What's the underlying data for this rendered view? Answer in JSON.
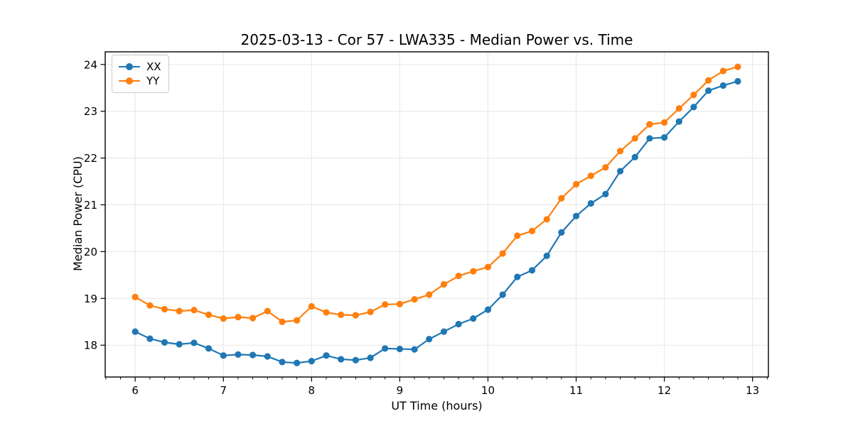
{
  "figure": {
    "background": "#ffffff"
  },
  "chart_data": {
    "type": "line",
    "title": "2025-03-13 - Cor 57 - LWA335 - Median Power vs. Time",
    "xlabel": "UT Time (hours)",
    "ylabel": "Median Power (CPU)",
    "xlim": [
      5.66,
      13.18
    ],
    "ylim": [
      17.32,
      24.27
    ],
    "xticks": [
      6,
      7,
      8,
      9,
      10,
      11,
      12,
      13
    ],
    "yticks": [
      18,
      19,
      20,
      21,
      22,
      23,
      24
    ],
    "x_minor_divisions_per_unit": 6,
    "grid": "major-both",
    "grid_color": "#e8e8e8",
    "legend_position": "upper-left",
    "x": [
      6.0,
      6.167,
      6.333,
      6.5,
      6.667,
      6.833,
      7.0,
      7.167,
      7.333,
      7.5,
      7.667,
      7.833,
      8.0,
      8.167,
      8.333,
      8.5,
      8.667,
      8.833,
      9.0,
      9.167,
      9.333,
      9.5,
      9.667,
      9.833,
      10.0,
      10.167,
      10.333,
      10.5,
      10.667,
      10.833,
      11.0,
      11.167,
      11.333,
      11.5,
      11.667,
      11.833,
      12.0,
      12.167,
      12.333,
      12.5,
      12.667,
      12.833
    ],
    "series": [
      {
        "name": "XX",
        "color": "#1f77b4",
        "values": [
          18.29,
          18.14,
          18.06,
          18.02,
          18.05,
          17.93,
          17.78,
          17.8,
          17.79,
          17.76,
          17.64,
          17.62,
          17.66,
          17.78,
          17.7,
          17.68,
          17.73,
          17.93,
          17.92,
          17.91,
          18.13,
          18.29,
          18.45,
          18.57,
          18.76,
          19.08,
          19.46,
          19.6,
          19.91,
          20.41,
          20.76,
          21.03,
          21.23,
          21.72,
          22.02,
          22.42,
          22.44,
          22.78,
          23.09,
          23.44,
          23.55,
          23.64
        ]
      },
      {
        "name": "YY",
        "color": "#ff7f0e",
        "values": [
          19.03,
          18.85,
          18.77,
          18.73,
          18.75,
          18.65,
          18.57,
          18.6,
          18.58,
          18.73,
          18.5,
          18.53,
          18.83,
          18.7,
          18.65,
          18.64,
          18.71,
          18.87,
          18.88,
          18.98,
          19.08,
          19.3,
          19.48,
          19.58,
          19.67,
          19.96,
          20.34,
          20.44,
          20.69,
          21.14,
          21.44,
          21.62,
          21.8,
          22.15,
          22.42,
          22.72,
          22.76,
          23.06,
          23.35,
          23.66,
          23.86,
          23.95
        ]
      }
    ]
  }
}
